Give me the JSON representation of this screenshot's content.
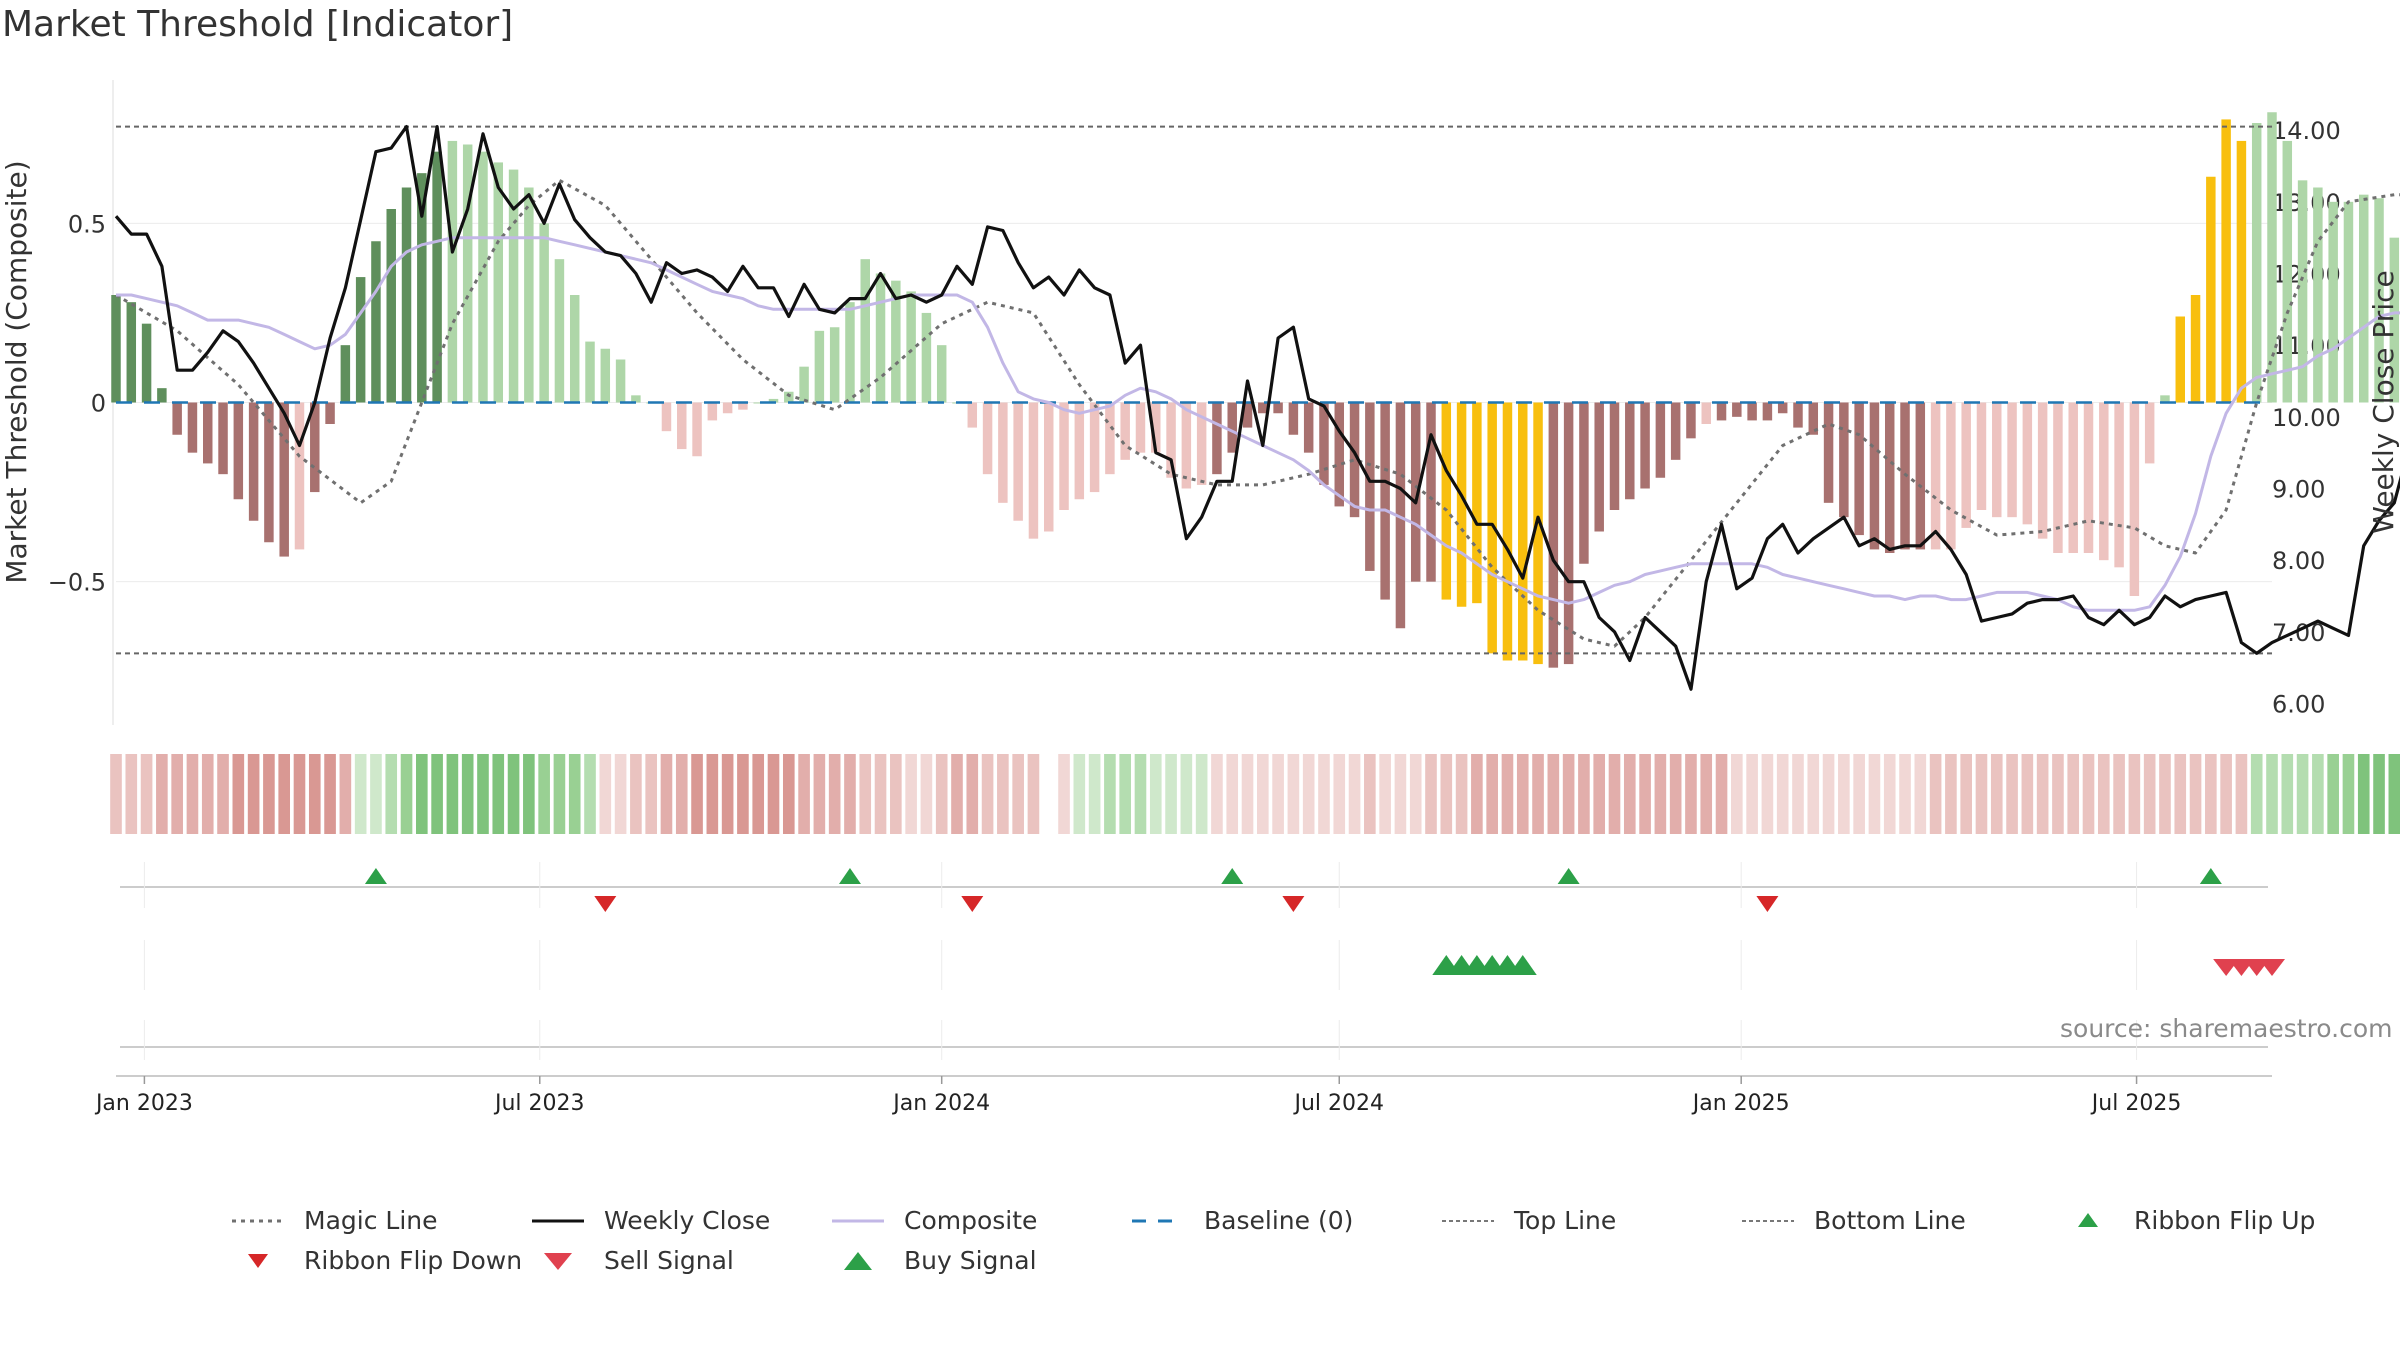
{
  "title": "Market Threshold [Indicator]",
  "source": "source: sharemaestro.com",
  "colors": {
    "magic_line": "#707070",
    "weekly_close": "#111111",
    "composite": "#c2b7e6",
    "baseline": "#1f77b4",
    "threshold_lines": "#666666",
    "bar_pos_dark": "#5f8f5c",
    "bar_pos_light": "#aed6a8",
    "bar_neg_dark": "#a8716f",
    "bar_neg_light": "#edc3c0",
    "bar_extreme": "#f8bf0e",
    "signal_up": "#2ca048",
    "signal_down": "#d62728",
    "sell_signal": "#e0414f"
  },
  "legend": {
    "magic_line": "Magic Line",
    "weekly_close": "Weekly Close",
    "composite": "Composite",
    "baseline": "Baseline (0)",
    "top_line": "Top Line",
    "bottom_line": "Bottom Line",
    "ribbon_flip_up": "Ribbon Flip Up",
    "ribbon_flip_down": "Ribbon Flip Down",
    "sell_signal": "Sell Signal",
    "buy_signal": "Buy Signal"
  },
  "chart_data": {
    "type": "bar",
    "title": "Market Threshold [Indicator]",
    "ylabel": "Market Threshold (Composite)",
    "y2label": "Weekly Close Price",
    "ylim": [
      -0.9,
      0.9
    ],
    "y2lim": [
      5.7,
      14.7
    ],
    "yticks": [
      {
        "v": 0.5,
        "label": "0.5"
      },
      {
        "v": 0,
        "label": "0"
      },
      {
        "v": -0.5,
        "label": "−0.5"
      }
    ],
    "y2ticks": [
      {
        "v": 14,
        "label": "14.00"
      },
      {
        "v": 13,
        "label": "13.00"
      },
      {
        "v": 12,
        "label": "12.00"
      },
      {
        "v": 11,
        "label": "11.00"
      },
      {
        "v": 10,
        "label": "10.00"
      },
      {
        "v": 9,
        "label": "9.00"
      },
      {
        "v": 8,
        "label": "8.00"
      },
      {
        "v": 7,
        "label": "7.00"
      },
      {
        "v": 6,
        "label": "6.00"
      }
    ],
    "x_axis": {
      "start": "2022-12-19",
      "end": "2025-09-01",
      "ticks": [
        {
          "date": "2023-01-01",
          "label": "Jan 2023"
        },
        {
          "date": "2023-07-01",
          "label": "Jul 2023"
        },
        {
          "date": "2024-01-01",
          "label": "Jan 2024"
        },
        {
          "date": "2024-07-01",
          "label": "Jul 2024"
        },
        {
          "date": "2025-01-01",
          "label": "Jan 2025"
        },
        {
          "date": "2025-07-01",
          "label": "Jul 2025"
        }
      ]
    },
    "top_line": 0.77,
    "bottom_line": -0.7,
    "baseline": 0,
    "grid": true,
    "legend_position": "bottom",
    "weeks": {
      "start": "2022-12-19",
      "composite_bars": [
        0.3,
        0.28,
        0.22,
        0.04,
        -0.09,
        -0.14,
        -0.17,
        -0.2,
        -0.27,
        -0.33,
        -0.39,
        -0.43,
        -0.41,
        -0.25,
        -0.06,
        0.16,
        0.35,
        0.45,
        0.54,
        0.6,
        0.64,
        0.7,
        0.73,
        0.72,
        0.7,
        0.67,
        0.65,
        0.6,
        0.5,
        0.4,
        0.3,
        0.17,
        0.15,
        0.12,
        0.02,
        0,
        -0.08,
        -0.13,
        -0.15,
        -0.05,
        -0.03,
        -0.02,
        0,
        0.01,
        0.03,
        0.1,
        0.2,
        0.21,
        0.28,
        0.4,
        0.36,
        0.34,
        0.31,
        0.25,
        0.16,
        0,
        -0.07,
        -0.2,
        -0.28,
        -0.33,
        -0.38,
        -0.36,
        -0.3,
        -0.27,
        -0.25,
        -0.2,
        -0.16,
        -0.14,
        -0.14,
        -0.21,
        -0.24,
        -0.23,
        -0.2,
        -0.14,
        -0.07,
        -0.03,
        -0.03,
        -0.09,
        -0.14,
        -0.23,
        -0.29,
        -0.32,
        -0.47,
        -0.55,
        -0.63,
        -0.5,
        -0.5,
        -0.55,
        -0.57,
        -0.56,
        -0.7,
        -0.72,
        -0.72,
        -0.73,
        -0.74,
        -0.73,
        -0.45,
        -0.36,
        -0.3,
        -0.27,
        -0.24,
        -0.21,
        -0.16,
        -0.1,
        -0.06,
        -0.05,
        -0.04,
        -0.05,
        -0.05,
        -0.03,
        -0.07,
        -0.09,
        -0.28,
        -0.32,
        -0.37,
        -0.41,
        -0.42,
        -0.41,
        -0.41,
        -0.41,
        -0.41,
        -0.35,
        -0.3,
        -0.32,
        -0.32,
        -0.34,
        -0.38,
        -0.42,
        -0.42,
        -0.42,
        -0.44,
        -0.46,
        -0.54,
        -0.17,
        0.02,
        0.24,
        0.3,
        0.63,
        0.79,
        0.73,
        0.78,
        0.81,
        0.73,
        0.62,
        0.6,
        0.56,
        0.56,
        0.58,
        0.57,
        0.46,
        0.37
      ],
      "bar_shade": "ddddddddddddldddddddddllllllllllllllllllllllllllllllllllllllllllllllllllddddddddddddddddddddddddddddddddlddddddddddddddllllllllllllllllllllllllllllllllllllllllllllllllllllllllllddddddllllllllllllllll",
      "extreme_weeks": [
        87,
        88,
        89,
        90,
        91,
        92,
        93,
        135,
        136,
        137,
        138,
        139
      ],
      "weekly_close": [
        12.8,
        12.55,
        12.55,
        12.1,
        10.65,
        10.65,
        10.9,
        11.2,
        11.05,
        10.75,
        10.4,
        10.05,
        9.6,
        10.2,
        11.1,
        11.8,
        12.75,
        13.7,
        13.75,
        14.05,
        12.8,
        14.05,
        12.3,
        12.9,
        13.95,
        13.2,
        12.9,
        13.1,
        12.7,
        13.25,
        12.75,
        12.5,
        12.3,
        12.25,
        12,
        11.6,
        12.15,
        12,
        12.05,
        11.95,
        11.75,
        12.1,
        11.8,
        11.8,
        11.4,
        11.85,
        11.5,
        11.45,
        11.65,
        11.65,
        12.0,
        11.65,
        11.7,
        11.6,
        11.7,
        12.1,
        11.85,
        12.65,
        12.6,
        12.15,
        11.8,
        11.95,
        11.7,
        12.05,
        11.8,
        11.7,
        10.75,
        11.0,
        9.5,
        9.4,
        8.3,
        8.6,
        9.1,
        9.1,
        10.5,
        9.6,
        11.1,
        11.25,
        10.25,
        10.15,
        9.8,
        9.5,
        9.1,
        9.1,
        9.0,
        8.8,
        9.75,
        9.25,
        8.9,
        8.5,
        8.5,
        8.15,
        7.75,
        8.6,
        8.0,
        7.7,
        7.7,
        7.2,
        7.0,
        6.6,
        7.2,
        7.0,
        6.8,
        6.2,
        7.7,
        8.5,
        7.6,
        7.75,
        8.3,
        8.5,
        8.1,
        8.3,
        8.45,
        8.6,
        8.2,
        8.3,
        8.15,
        8.2,
        8.2,
        8.4,
        8.15,
        7.8,
        7.15,
        7.2,
        7.25,
        7.4,
        7.45,
        7.45,
        7.5,
        7.2,
        7.1,
        7.3,
        7.1,
        7.2,
        7.5,
        7.35,
        7.45,
        7.5,
        7.55,
        6.85,
        6.7,
        6.85,
        6.95,
        7.05,
        7.15,
        7.05,
        6.95,
        8.2,
        8.55,
        8.8,
        9.6,
        11.8,
        12.45,
        13.8,
        13.0,
        12.55,
        12.8,
        11.8,
        11.5,
        12.3,
        12.3,
        12.55,
        12.4,
        12.55,
        12.5,
        12.2,
        11.85
      ],
      "composite": [
        0.3,
        0.3,
        0.29,
        0.28,
        0.27,
        0.25,
        0.23,
        0.23,
        0.23,
        0.22,
        0.21,
        0.19,
        0.17,
        0.15,
        0.16,
        0.19,
        0.25,
        0.31,
        0.38,
        0.42,
        0.44,
        0.45,
        0.46,
        0.46,
        0.46,
        0.46,
        0.46,
        0.46,
        0.46,
        0.45,
        0.44,
        0.43,
        0.42,
        0.41,
        0.4,
        0.39,
        0.37,
        0.35,
        0.33,
        0.31,
        0.3,
        0.29,
        0.27,
        0.26,
        0.26,
        0.26,
        0.26,
        0.26,
        0.26,
        0.27,
        0.28,
        0.29,
        0.3,
        0.3,
        0.3,
        0.3,
        0.28,
        0.21,
        0.11,
        0.03,
        0.01,
        0.0,
        -0.02,
        -0.03,
        -0.02,
        -0.01,
        0.02,
        0.04,
        0.03,
        0.01,
        -0.02,
        -0.04,
        -0.06,
        -0.08,
        -0.1,
        -0.12,
        -0.14,
        -0.16,
        -0.19,
        -0.23,
        -0.26,
        -0.29,
        -0.3,
        -0.3,
        -0.32,
        -0.34,
        -0.37,
        -0.4,
        -0.42,
        -0.45,
        -0.48,
        -0.5,
        -0.52,
        -0.54,
        -0.55,
        -0.56,
        -0.55,
        -0.53,
        -0.51,
        -0.5,
        -0.48,
        -0.47,
        -0.46,
        -0.45,
        -0.45,
        -0.45,
        -0.45,
        -0.45,
        -0.46,
        -0.48,
        -0.49,
        -0.5,
        -0.51,
        -0.52,
        -0.53,
        -0.54,
        -0.54,
        -0.55,
        -0.54,
        -0.54,
        -0.55,
        -0.55,
        -0.54,
        -0.53,
        -0.53,
        -0.53,
        -0.54,
        -0.55,
        -0.57,
        -0.58,
        -0.58,
        -0.58,
        -0.58,
        -0.57,
        -0.51,
        -0.43,
        -0.31,
        -0.15,
        -0.03,
        0.04,
        0.07,
        0.08,
        0.09,
        0.1,
        0.13,
        0.15,
        0.18,
        0.21,
        0.24,
        0.25,
        0.25,
        0.24
      ]
    },
    "magic_line": {
      "points": [
        {
          "week": 0,
          "value": 0.3
        },
        {
          "week": 4,
          "value": 0.2
        },
        {
          "week": 8,
          "value": 0.05
        },
        {
          "week": 12,
          "value": -0.15
        },
        {
          "week": 16,
          "value": -0.28
        },
        {
          "week": 18,
          "value": -0.22
        },
        {
          "week": 20,
          "value": 0
        },
        {
          "week": 22,
          "value": 0.22
        },
        {
          "week": 25,
          "value": 0.45
        },
        {
          "week": 27,
          "value": 0.55
        },
        {
          "week": 29,
          "value": 0.62
        },
        {
          "week": 32,
          "value": 0.55
        },
        {
          "week": 35,
          "value": 0.4
        },
        {
          "week": 38,
          "value": 0.25
        },
        {
          "week": 41,
          "value": 0.12
        },
        {
          "week": 44,
          "value": 0.02
        },
        {
          "week": 47,
          "value": -0.02
        },
        {
          "week": 50,
          "value": 0.07
        },
        {
          "week": 54,
          "value": 0.22
        },
        {
          "week": 57,
          "value": 0.28
        },
        {
          "week": 60,
          "value": 0.25
        },
        {
          "week": 63,
          "value": 0.05
        },
        {
          "week": 66,
          "value": -0.12
        },
        {
          "week": 69,
          "value": -0.2
        },
        {
          "week": 72,
          "value": -0.23
        },
        {
          "week": 75,
          "value": -0.23
        },
        {
          "week": 78,
          "value": -0.2
        },
        {
          "week": 81,
          "value": -0.16
        },
        {
          "week": 84,
          "value": -0.2
        },
        {
          "week": 87,
          "value": -0.3
        },
        {
          "week": 90,
          "value": -0.46
        },
        {
          "week": 93,
          "value": -0.58
        },
        {
          "week": 96,
          "value": -0.66
        },
        {
          "week": 98,
          "value": -0.68
        },
        {
          "week": 100,
          "value": -0.6
        },
        {
          "week": 103,
          "value": -0.44
        },
        {
          "week": 106,
          "value": -0.28
        },
        {
          "week": 109,
          "value": -0.12
        },
        {
          "week": 112,
          "value": -0.06
        },
        {
          "week": 114,
          "value": -0.09
        },
        {
          "week": 117,
          "value": -0.2
        },
        {
          "week": 120,
          "value": -0.3
        },
        {
          "week": 123,
          "value": -0.37
        },
        {
          "week": 126,
          "value": -0.36
        },
        {
          "week": 129,
          "value": -0.33
        },
        {
          "week": 132,
          "value": -0.35
        },
        {
          "week": 134,
          "value": -0.4
        },
        {
          "week": 136,
          "value": -0.42
        },
        {
          "week": 138,
          "value": -0.3
        },
        {
          "week": 140,
          "value": 0
        },
        {
          "week": 142,
          "value": 0.25
        },
        {
          "week": 144,
          "value": 0.45
        },
        {
          "week": 146,
          "value": 0.56
        },
        {
          "week": 149,
          "value": 0.58
        },
        {
          "week": 152,
          "value": 0.58
        },
        {
          "week": 155,
          "value": 0.52
        }
      ]
    },
    "ribbon": {
      "shades": "222333334444444311234444444433321122334444444333322211233222221112221111111111111121112223333333333333333311111111111112222222222222222222222222233444333332222222111112233444566663322",
      "signs": "----------------++++++++++++++++-------------------------------+++++++++--------------------------------------------------------------------++++++++++++++++++++++++++++++++++++++++++++++++++++",
      "gap_week": 61
    },
    "ribbon_flip_up_weeks": [
      17,
      48,
      73,
      95,
      137
    ],
    "ribbon_flip_down_weeks": [
      32,
      56,
      77,
      108
    ],
    "buy_signal_weeks": [
      87,
      88,
      89,
      90,
      91,
      92
    ],
    "sell_signal_weeks": [
      138,
      139,
      140,
      141
    ]
  }
}
